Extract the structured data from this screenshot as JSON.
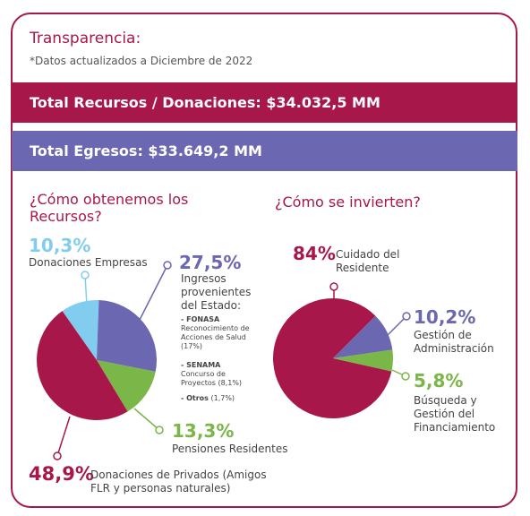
{
  "header": {
    "title": "Transparencia:",
    "subtitle": "*Datos actualizados a Diciembre de 2022"
  },
  "bands": {
    "total_recursos": "Total Recursos / Donaciones: $34.032,5 MM",
    "total_egresos": "Total Egresos: $33.649,2 MM"
  },
  "left": {
    "question": "¿Cómo obtenemos los Recursos?",
    "slices": [
      {
        "pct": "10,3%",
        "label": "Donaciones Empresas"
      },
      {
        "pct": "27,5%",
        "label": "Ingresos provenientes del Estado:"
      },
      {
        "pct": "13,3%",
        "label": "Pensiones Residentes"
      },
      {
        "pct": "48,9%",
        "label": "Donaciones de Privados (Amigos FLR y personas naturales)"
      }
    ],
    "estado_items": [
      {
        "name": "- FONASA",
        "detail": "Reconocimiento de Acciones de Salud (17%)"
      },
      {
        "name": "- SENAMA",
        "detail": "Concurso de Proyectos (8,1%)"
      },
      {
        "name": "- Otros",
        "detail": "(1,7%)"
      }
    ]
  },
  "right": {
    "question": "¿Cómo se invierten?",
    "slices": [
      {
        "pct": "84%",
        "label": "Cuidado del Residente"
      },
      {
        "pct": "10,2%",
        "label": "Gestión de Administración"
      },
      {
        "pct": "5,8%",
        "label": "Búsqueda y Gestión del Financiamiento"
      }
    ]
  },
  "colors": {
    "crimson": "#a8174a",
    "purple": "#6b67b0",
    "green": "#7ab648",
    "lightblue": "#82cdef",
    "grey": "#6f6f6f"
  },
  "chart_data": [
    {
      "type": "pie",
      "title": "¿Cómo obtenemos los Recursos?",
      "labels": [
        "Donaciones Empresas",
        "Ingresos provenientes del Estado",
        "Pensiones Residentes",
        "Donaciones de Privados (Amigos FLR y personas naturales)"
      ],
      "values": [
        10.3,
        27.5,
        13.3,
        48.9
      ],
      "colors": [
        "#82cdef",
        "#6b67b0",
        "#7ab648",
        "#a8174a"
      ]
    },
    {
      "type": "pie",
      "title": "¿Cómo se invierten?",
      "labels": [
        "Gestión de Administración",
        "Búsqueda y Gestión del Financiamiento",
        "Cuidado del Residente"
      ],
      "values": [
        10.2,
        5.8,
        84
      ],
      "colors": [
        "#6b67b0",
        "#7ab648",
        "#a8174a"
      ]
    }
  ]
}
